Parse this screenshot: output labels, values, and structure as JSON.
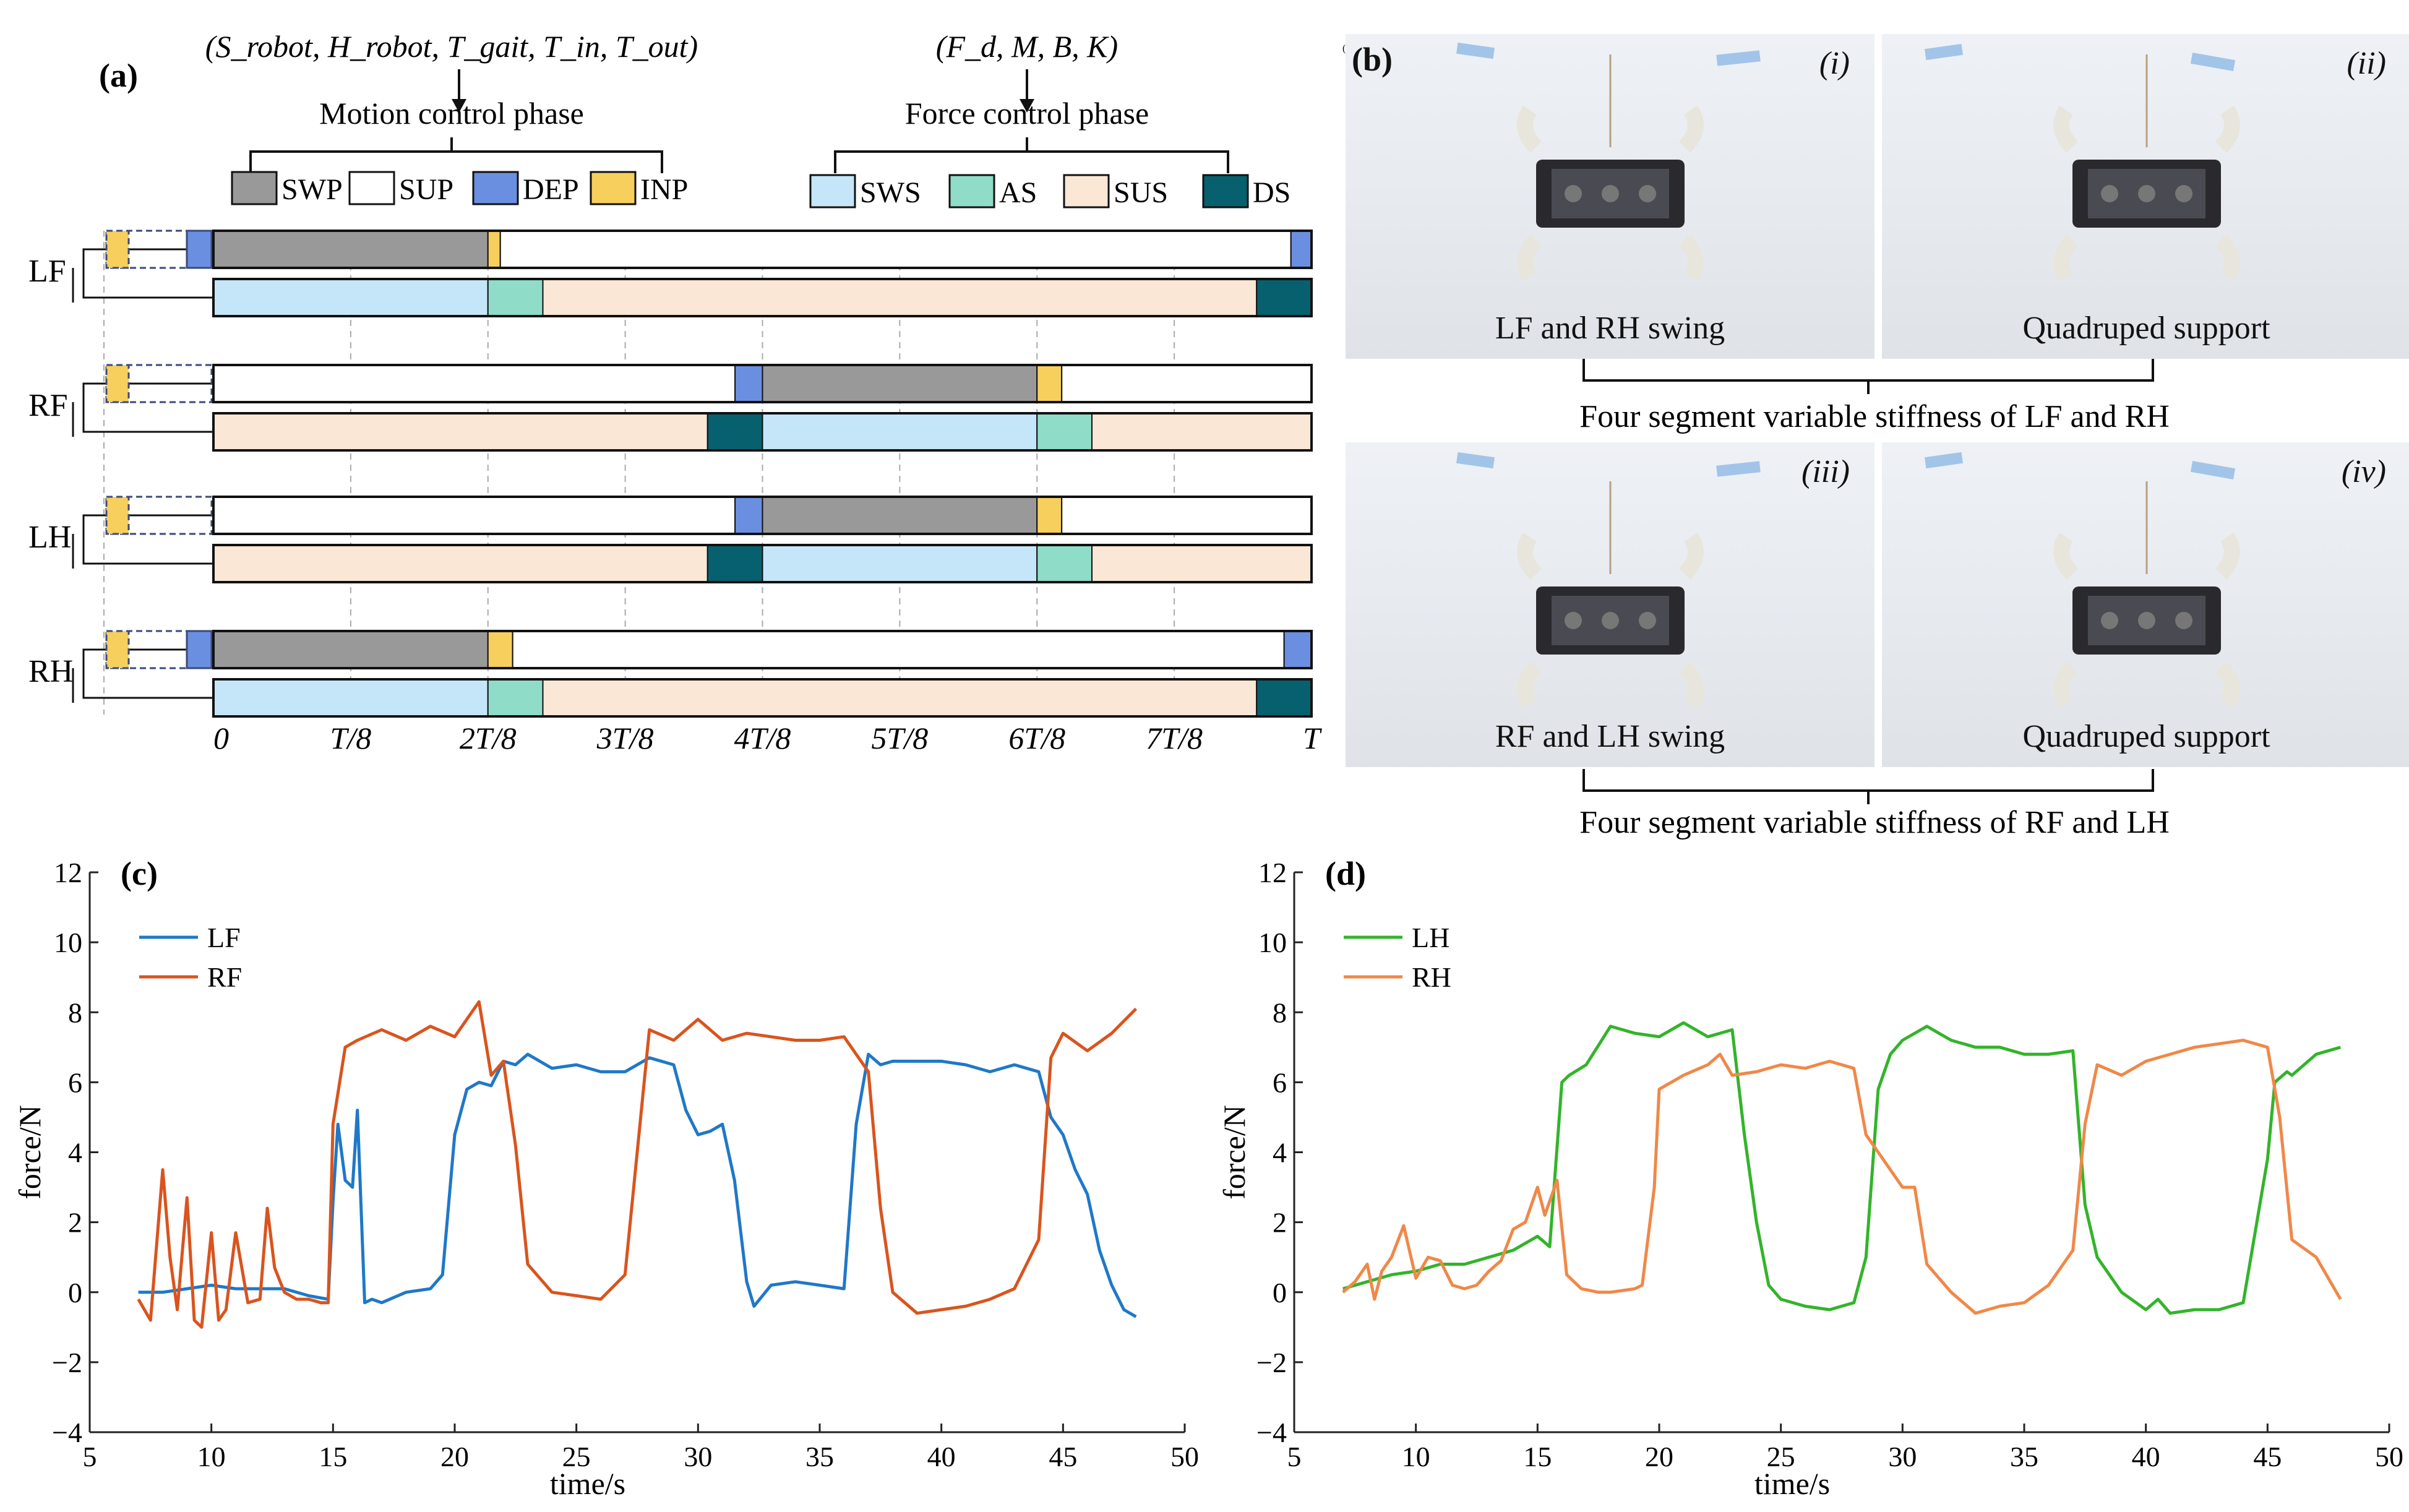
{
  "panels": {
    "a": {
      "label": "(a)",
      "motion_params": "(S_robot, H_robot, T_gait, T_in, T_out)",
      "force_params": "(F_d, M, B, K)",
      "motion_phase_title": "Motion control phase",
      "force_phase_title": "Force control phase",
      "motion_legend": [
        {
          "label": "SWP",
          "color": "#999999"
        },
        {
          "label": "SUP",
          "color": "#ffffff"
        },
        {
          "label": "DEP",
          "color": "#6b8fe0"
        },
        {
          "label": "INP",
          "color": "#f7cf5d"
        }
      ],
      "force_legend": [
        {
          "label": "SWS",
          "color": "#c5e6f8"
        },
        {
          "label": "AS",
          "color": "#8fdcc8"
        },
        {
          "label": "SUS",
          "color": "#fbe7d6"
        },
        {
          "label": "DS",
          "color": "#07606e"
        }
      ],
      "legs": [
        {
          "name": "LF",
          "motion": [
            [
              "SWP",
              0,
              2
            ],
            [
              "INP",
              2,
              2.09
            ],
            [
              "SUP",
              2.09,
              7.85
            ],
            [
              "DEP",
              7.85,
              8
            ]
          ],
          "force": [
            [
              "SWS",
              0,
              2
            ],
            [
              "AS",
              2,
              2.4
            ],
            [
              "SUS",
              2.4,
              7.6
            ],
            [
              "DS",
              7.6,
              8
            ]
          ]
        },
        {
          "name": "RF",
          "motion": [
            [
              "SUP",
              0,
              3.8
            ],
            [
              "DEP",
              3.8,
              4
            ],
            [
              "SWP",
              4,
              6
            ],
            [
              "INP",
              6,
              6.18
            ],
            [
              "SUP",
              6.18,
              8
            ]
          ],
          "force": [
            [
              "SUS",
              0,
              3.6
            ],
            [
              "DS",
              3.6,
              4
            ],
            [
              "SWS",
              4,
              6
            ],
            [
              "AS",
              6,
              6.4
            ],
            [
              "SUS",
              6.4,
              8
            ]
          ]
        },
        {
          "name": "LH",
          "motion": [
            [
              "SUP",
              0,
              3.8
            ],
            [
              "DEP",
              3.8,
              4
            ],
            [
              "SWP",
              4,
              6
            ],
            [
              "INP",
              6,
              6.18
            ],
            [
              "SUP",
              6.18,
              8
            ]
          ],
          "force": [
            [
              "SUS",
              0,
              3.6
            ],
            [
              "DS",
              3.6,
              4
            ],
            [
              "SWS",
              4,
              6
            ],
            [
              "AS",
              6,
              6.4
            ],
            [
              "SUS",
              6.4,
              8
            ]
          ]
        },
        {
          "name": "RH",
          "motion": [
            [
              "SWP",
              0,
              2
            ],
            [
              "INP",
              2,
              2.18
            ],
            [
              "SUP",
              2.18,
              7.8
            ],
            [
              "DEP",
              7.8,
              8
            ]
          ],
          "force": [
            [
              "SWS",
              0,
              2
            ],
            [
              "AS",
              2,
              2.4
            ],
            [
              "SUS",
              2.4,
              7.6
            ],
            [
              "DS",
              7.6,
              8
            ]
          ]
        }
      ],
      "time_ticks": [
        "0",
        "T/8",
        "2T/8",
        "3T/8",
        "4T/8",
        "5T/8",
        "6T/8",
        "7T/8",
        "T"
      ]
    },
    "b": {
      "label": "(b)",
      "photos": [
        {
          "num": "(i)",
          "caption": "LF and RH swing"
        },
        {
          "num": "(ii)",
          "caption": "Quadruped support"
        },
        {
          "num": "(iii)",
          "caption": "RF and LH swing"
        },
        {
          "num": "(iv)",
          "caption": "Quadruped support"
        }
      ],
      "group_top": "Four segment variable stiffness of LF and RH",
      "group_bottom": "Four segment variable stiffness of RF and LH"
    }
  },
  "chart_data": [
    {
      "type": "line",
      "label": "(c)",
      "xlabel": "time/s",
      "ylabel": "force/N",
      "xlim": [
        5,
        50
      ],
      "ylim": [
        -4,
        12
      ],
      "xticks": [
        5,
        10,
        15,
        20,
        25,
        30,
        35,
        40,
        45,
        50
      ],
      "yticks": [
        -4,
        -2,
        0,
        2,
        4,
        6,
        8,
        10,
        12
      ],
      "series": [
        {
          "name": "LF",
          "color": "#1f78c8",
          "x": [
            7,
            8,
            9,
            10,
            11,
            12,
            13,
            14,
            14.8,
            15,
            15.2,
            15.5,
            15.8,
            16,
            16.3,
            16.6,
            17,
            18,
            19,
            19.5,
            20,
            20.5,
            21,
            21.5,
            22,
            22.5,
            23,
            24,
            25,
            26,
            27,
            28,
            29,
            29.5,
            30,
            30.5,
            31,
            31.5,
            32,
            32.3,
            33,
            34,
            35,
            36,
            36.5,
            37,
            37.5,
            38,
            39,
            40,
            41,
            42,
            43,
            44,
            44.5,
            45,
            45.5,
            46,
            46.5,
            47,
            47.5,
            48
          ],
          "y": [
            0,
            0,
            0.1,
            0.2,
            0.1,
            0.1,
            0.1,
            -0.1,
            -0.2,
            2.6,
            4.8,
            3.2,
            3.0,
            5.2,
            -0.3,
            -0.2,
            -0.3,
            0,
            0.1,
            0.5,
            4.5,
            5.8,
            6,
            5.9,
            6.6,
            6.5,
            6.8,
            6.4,
            6.5,
            6.3,
            6.3,
            6.7,
            6.5,
            5.2,
            4.5,
            4.6,
            4.8,
            3.2,
            0.3,
            -0.4,
            0.2,
            0.3,
            0.2,
            0.1,
            4.8,
            6.8,
            6.5,
            6.6,
            6.6,
            6.6,
            6.5,
            6.3,
            6.5,
            6.3,
            5,
            4.5,
            3.5,
            2.8,
            1.2,
            0.2,
            -0.5,
            -0.7
          ]
        },
        {
          "name": "RF",
          "color": "#d9541e",
          "x": [
            7,
            7.5,
            8,
            8.3,
            8.6,
            9,
            9.3,
            9.6,
            10,
            10.3,
            10.6,
            11,
            11.5,
            12,
            12.3,
            12.6,
            13,
            13.5,
            14,
            14.5,
            14.8,
            15,
            15.5,
            16,
            17,
            18,
            19,
            20,
            21,
            21.5,
            22,
            22.5,
            23,
            24,
            25,
            26,
            27,
            28,
            29,
            30,
            31,
            32,
            33,
            34,
            35,
            36,
            37,
            37.5,
            38,
            39,
            40,
            41,
            42,
            43,
            44,
            44.5,
            45,
            46,
            47,
            48
          ],
          "y": [
            -0.2,
            -0.8,
            3.5,
            1.0,
            -0.5,
            2.7,
            -0.8,
            -1.0,
            1.7,
            -0.8,
            -0.5,
            1.7,
            -0.3,
            -0.2,
            2.4,
            0.7,
            0,
            -0.2,
            -0.2,
            -0.3,
            -0.3,
            4.8,
            7,
            7.2,
            7.5,
            7.2,
            7.6,
            7.3,
            8.3,
            6.2,
            6.6,
            4.2,
            0.8,
            0,
            -0.1,
            -0.2,
            0.5,
            7.5,
            7.2,
            7.8,
            7.2,
            7.4,
            7.3,
            7.2,
            7.2,
            7.3,
            6.3,
            2.4,
            0,
            -0.6,
            -0.5,
            -0.4,
            -0.2,
            0.1,
            1.5,
            6.7,
            7.4,
            6.9,
            7.4,
            8.1
          ]
        }
      ]
    },
    {
      "type": "line",
      "label": "(d)",
      "xlabel": "time/s",
      "ylabel": "force/N",
      "xlim": [
        5,
        50
      ],
      "ylim": [
        -4,
        12
      ],
      "xticks": [
        5,
        10,
        15,
        20,
        25,
        30,
        35,
        40,
        45,
        50
      ],
      "yticks": [
        -4,
        -2,
        0,
        2,
        4,
        6,
        8,
        10,
        12
      ],
      "series": [
        {
          "name": "LH",
          "color": "#33b42a",
          "x": [
            7,
            8,
            9,
            10,
            11,
            12,
            13,
            14,
            15,
            15.5,
            16,
            16.3,
            17,
            18,
            19,
            20,
            21,
            22,
            23,
            23.5,
            24,
            24.5,
            25,
            26,
            27,
            28,
            28.5,
            29,
            29.5,
            30,
            31,
            32,
            33,
            34,
            35,
            36,
            37,
            37.5,
            38,
            39,
            40,
            40.5,
            41,
            42,
            43,
            44,
            45,
            45.3,
            45.8,
            46,
            47,
            48
          ],
          "y": [
            0.1,
            0.3,
            0.5,
            0.6,
            0.8,
            0.8,
            1.0,
            1.2,
            1.6,
            1.3,
            6.0,
            6.2,
            6.5,
            7.6,
            7.4,
            7.3,
            7.7,
            7.3,
            7.5,
            4.5,
            2.0,
            0.2,
            -0.2,
            -0.4,
            -0.5,
            -0.3,
            1.0,
            5.8,
            6.8,
            7.2,
            7.6,
            7.2,
            7.0,
            7.0,
            6.8,
            6.8,
            6.9,
            2.5,
            1.0,
            0,
            -0.5,
            -0.2,
            -0.6,
            -0.5,
            -0.5,
            -0.3,
            3.8,
            6.0,
            6.3,
            6.2,
            6.8,
            7.0
          ]
        },
        {
          "name": "RH",
          "color": "#f08848",
          "x": [
            7,
            7.5,
            8,
            8.3,
            8.6,
            9,
            9.5,
            10,
            10.5,
            11,
            11.5,
            12,
            12.5,
            13,
            13.5,
            14,
            14.5,
            15,
            15.3,
            15.8,
            16.2,
            16.8,
            17.5,
            18,
            19,
            19.3,
            19.8,
            20,
            21,
            22,
            22.5,
            23,
            24,
            25,
            26,
            27,
            28,
            28.5,
            29,
            30,
            30.5,
            31,
            32,
            33,
            34,
            35,
            36,
            37,
            37.5,
            38,
            39,
            40,
            41,
            42,
            43,
            44,
            45,
            45.5,
            46,
            47,
            48
          ],
          "y": [
            0,
            0.3,
            0.8,
            -0.2,
            0.6,
            1.0,
            1.9,
            0.4,
            1.0,
            0.9,
            0.2,
            0.1,
            0.2,
            0.6,
            0.9,
            1.8,
            2.0,
            3.0,
            2.2,
            3.2,
            0.5,
            0.1,
            0,
            0,
            0.1,
            0.2,
            3.0,
            5.8,
            6.2,
            6.5,
            6.8,
            6.2,
            6.3,
            6.5,
            6.4,
            6.6,
            6.4,
            4.5,
            4.0,
            3.0,
            3.0,
            0.8,
            0,
            -0.6,
            -0.4,
            -0.3,
            0.2,
            1.2,
            4.8,
            6.5,
            6.2,
            6.6,
            6.8,
            7.0,
            7.1,
            7.2,
            7.0,
            5.0,
            1.5,
            1.0,
            -0.2
          ]
        }
      ]
    }
  ]
}
